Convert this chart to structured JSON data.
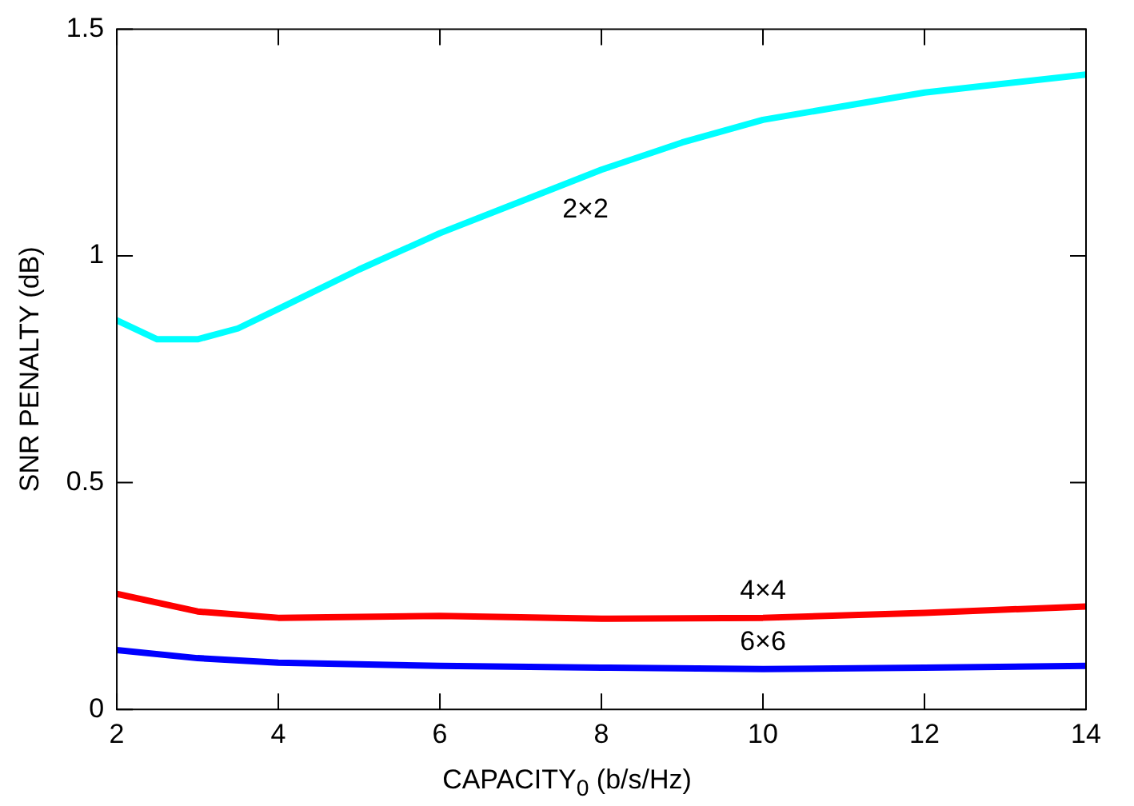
{
  "chart_data": {
    "type": "line",
    "xlabel": "CAPACITY$_{0}$ (b/s/Hz)",
    "ylabel": "SNR PENALTY (dB)",
    "xlim": [
      2,
      14
    ],
    "xticks": [
      2,
      4,
      6,
      8,
      10,
      12,
      14
    ],
    "ylim": [
      0,
      1.5
    ],
    "yticks": [
      0,
      0.5,
      1,
      1.5
    ],
    "grid": false,
    "legend": false,
    "marker": "none",
    "line_style": "solid",
    "series": [
      {
        "name": "2×2",
        "color": "#00ffff",
        "x": [
          2,
          2.5,
          3,
          3.5,
          4,
          5,
          6,
          7,
          8,
          9,
          10,
          12,
          14
        ],
        "values": [
          0.858,
          0.816,
          0.816,
          0.84,
          0.883,
          0.97,
          1.05,
          1.12,
          1.19,
          1.25,
          1.3,
          1.36,
          1.4
        ]
      },
      {
        "name": "4×4",
        "color": "#ff0000",
        "x": [
          2,
          3,
          4,
          6,
          8,
          10,
          12,
          14
        ],
        "values": [
          0.255,
          0.216,
          0.202,
          0.206,
          0.2,
          0.202,
          0.213,
          0.227
        ]
      },
      {
        "name": "6×6",
        "color": "#0000ff",
        "x": [
          2,
          3,
          4,
          6,
          8,
          10,
          12,
          14
        ],
        "values": [
          0.131,
          0.113,
          0.103,
          0.096,
          0.092,
          0.089,
          0.092,
          0.096
        ]
      }
    ]
  }
}
